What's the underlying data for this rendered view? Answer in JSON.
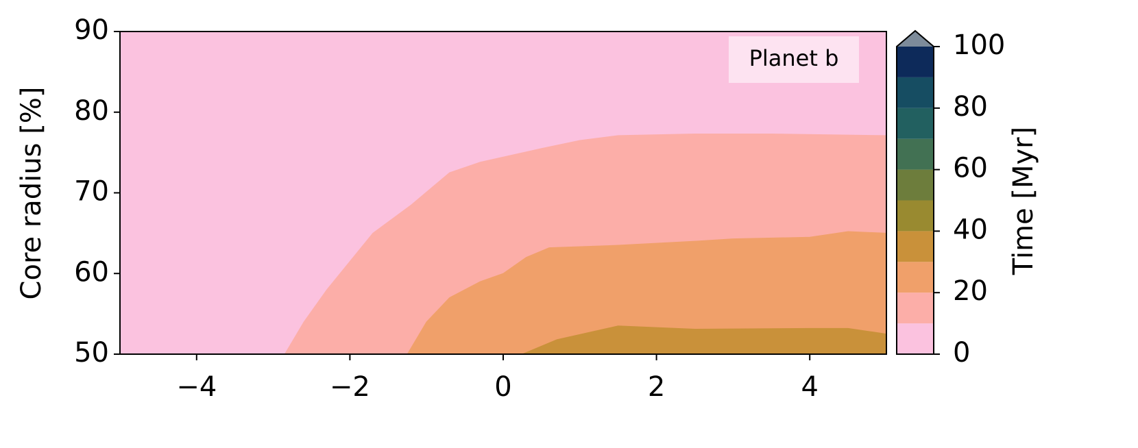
{
  "chart_data": {
    "type": "contourf",
    "ylabel": "Core radius [%]",
    "annotation": "Planet b",
    "colorbar_label": "Time [Myr]",
    "xlim": [
      -5,
      5
    ],
    "ylim": [
      50,
      90
    ],
    "xticks": [
      {
        "value": -4,
        "label": "−4"
      },
      {
        "value": -2,
        "label": "−2"
      },
      0,
      2,
      4
    ],
    "yticks": [
      50,
      60,
      70,
      80,
      90
    ],
    "levels": [
      0,
      10,
      20,
      30,
      40,
      50,
      60,
      70,
      80,
      90,
      100
    ],
    "colors": [
      "#fbc2df",
      "#fcaea8",
      "#f0a06a",
      "#c9913a",
      "#998a30",
      "#6d7d3c",
      "#427153",
      "#226060",
      "#164d62",
      "#0d2a5a"
    ],
    "extend_color": "#7d8b9a",
    "cbticks": [
      0,
      20,
      40,
      60,
      80,
      100
    ],
    "contours": [
      {
        "level": 10,
        "x": [
          -2.85,
          -2.6,
          -2.3,
          -2.0,
          -1.7,
          -1.2,
          -0.7,
          -0.3,
          0.5,
          1.0,
          1.5,
          2.5,
          3.5,
          5.0
        ],
        "y": [
          50,
          54,
          58,
          61.5,
          65,
          68.5,
          72.5,
          73.8,
          75.5,
          76.5,
          77.1,
          77.3,
          77.3,
          77.1
        ]
      },
      {
        "level": 20,
        "x": [
          -1.25,
          -1.0,
          -0.7,
          -0.3,
          0.0,
          0.3,
          0.6,
          1.5,
          2.5,
          3.0,
          4.0,
          4.5,
          5.0
        ],
        "y": [
          50,
          54,
          57,
          59,
          60,
          62,
          63.2,
          63.5,
          64,
          64.3,
          64.5,
          65.2,
          65
        ]
      },
      {
        "level": 30,
        "x": [
          0.25,
          0.7,
          1.5,
          2.5,
          4.0,
          4.5,
          5.0
        ],
        "y": [
          50,
          51.8,
          53.5,
          53.1,
          53.2,
          53.2,
          52.5
        ]
      }
    ]
  }
}
